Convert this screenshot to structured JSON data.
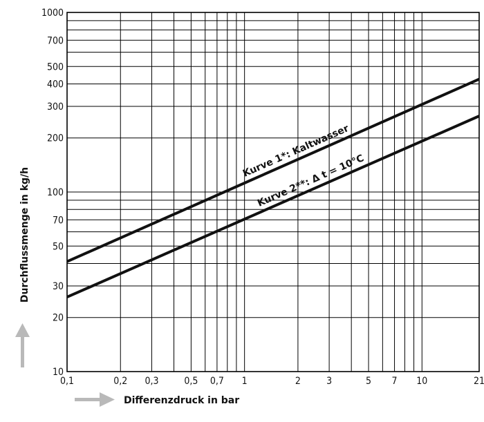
{
  "chart_data": {
    "type": "line",
    "title": "",
    "xlabel": "Differenzdruck in bar",
    "ylabel": "Durchflussmenge in kg/h",
    "xscale": "log",
    "yscale": "log",
    "xlim": [
      0.1,
      21
    ],
    "ylim": [
      10,
      1000
    ],
    "grid": true,
    "x_ticks": [
      {
        "v": 0.1,
        "label": "0,1"
      },
      {
        "v": 0.2,
        "label": "0,2"
      },
      {
        "v": 0.3,
        "label": "0,3"
      },
      {
        "v": 0.5,
        "label": "0,5"
      },
      {
        "v": 0.7,
        "label": "0,7"
      },
      {
        "v": 1,
        "label": "1"
      },
      {
        "v": 2,
        "label": "2"
      },
      {
        "v": 3,
        "label": "3"
      },
      {
        "v": 5,
        "label": "5"
      },
      {
        "v": 7,
        "label": "7"
      },
      {
        "v": 10,
        "label": "10"
      },
      {
        "v": 21,
        "label": "21"
      }
    ],
    "x_grid": [
      0.1,
      0.2,
      0.3,
      0.4,
      0.5,
      0.6,
      0.7,
      0.8,
      0.9,
      1,
      2,
      3,
      4,
      5,
      6,
      7,
      8,
      9,
      10,
      21
    ],
    "y_ticks": [
      {
        "v": 10,
        "label": "10"
      },
      {
        "v": 20,
        "label": "20"
      },
      {
        "v": 30,
        "label": "30"
      },
      {
        "v": 50,
        "label": "50"
      },
      {
        "v": 70,
        "label": "70"
      },
      {
        "v": 100,
        "label": "100"
      },
      {
        "v": 200,
        "label": "200"
      },
      {
        "v": 300,
        "label": "300"
      },
      {
        "v": 400,
        "label": "400"
      },
      {
        "v": 500,
        "label": "500"
      },
      {
        "v": 700,
        "label": "700"
      },
      {
        "v": 1000,
        "label": "1000"
      }
    ],
    "y_grid": [
      10,
      20,
      30,
      40,
      50,
      60,
      70,
      80,
      90,
      100,
      200,
      300,
      400,
      500,
      600,
      700,
      800,
      900,
      1000
    ],
    "series": [
      {
        "name": "Kurve 1*: Kaltwasser",
        "x": [
          0.1,
          21
        ],
        "y": [
          41,
          425
        ]
      },
      {
        "name": "Kurve 2**: Δ t = 10°C",
        "x": [
          0.1,
          21
        ],
        "y": [
          26,
          265
        ]
      }
    ]
  }
}
